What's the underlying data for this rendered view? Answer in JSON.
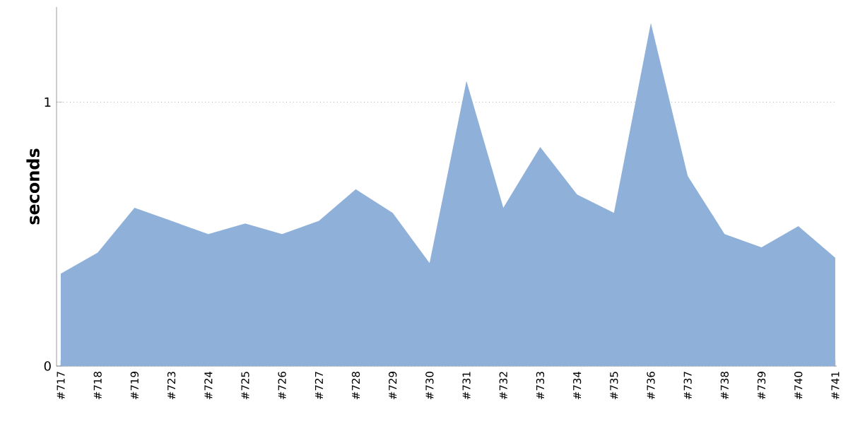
{
  "chart_data": {
    "type": "area",
    "ylabel": "seconds",
    "categories": [
      "#717",
      "#718",
      "#719",
      "#723",
      "#724",
      "#725",
      "#726",
      "#727",
      "#728",
      "#729",
      "#730",
      "#731",
      "#732",
      "#733",
      "#734",
      "#735",
      "#736",
      "#737",
      "#738",
      "#739",
      "#740",
      "#741"
    ],
    "series": [
      {
        "color": "#8fb1d9",
        "values": [
          0.35,
          0.43,
          0.6,
          0.55,
          0.5,
          0.54,
          0.5,
          0.55,
          0.67,
          0.58,
          0.39,
          1.08,
          0.6,
          0.83,
          0.65,
          0.58,
          1.3,
          0.72,
          0.5,
          0.45,
          0.53,
          0.41
        ]
      }
    ],
    "ylim": [
      0,
      1.36
    ],
    "yticks": [
      0,
      1
    ],
    "grid": "y"
  }
}
